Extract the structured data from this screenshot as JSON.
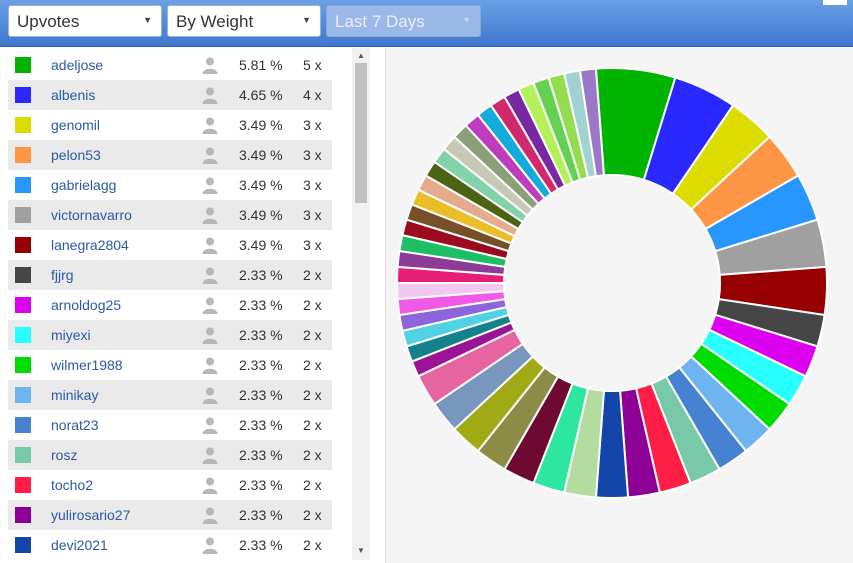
{
  "toolbar": {
    "metric": "Upvotes",
    "weighting": "By Weight",
    "period": "Last 7 Days"
  },
  "rows": [
    {
      "name": "adeljose",
      "pct": "5.81 %",
      "count": "5 x",
      "color": "#00b400"
    },
    {
      "name": "albenis",
      "pct": "4.65 %",
      "count": "4 x",
      "color": "#2828ff"
    },
    {
      "name": "genomil",
      "pct": "3.49 %",
      "count": "3 x",
      "color": "#dcdc00"
    },
    {
      "name": "pelon53",
      "pct": "3.49 %",
      "count": "3 x",
      "color": "#ff9646"
    },
    {
      "name": "gabrielagg",
      "pct": "3.49 %",
      "count": "3 x",
      "color": "#2896ff"
    },
    {
      "name": "victornavarro",
      "pct": "3.49 %",
      "count": "3 x",
      "color": "#a0a0a0"
    },
    {
      "name": "lanegra2804",
      "pct": "3.49 %",
      "count": "3 x",
      "color": "#960000"
    },
    {
      "name": "fjjrg",
      "pct": "2.33 %",
      "count": "2 x",
      "color": "#464646"
    },
    {
      "name": "arnoldog25",
      "pct": "2.33 %",
      "count": "2 x",
      "color": "#dc00f0"
    },
    {
      "name": "miyexi",
      "pct": "2.33 %",
      "count": "2 x",
      "color": "#28ffff"
    },
    {
      "name": "wilmer1988",
      "pct": "2.33 %",
      "count": "2 x",
      "color": "#00dc00"
    },
    {
      "name": "minikay",
      "pct": "2.33 %",
      "count": "2 x",
      "color": "#6eb4f0"
    },
    {
      "name": "norat23",
      "pct": "2.33 %",
      "count": "2 x",
      "color": "#4682d2"
    },
    {
      "name": "rosz",
      "pct": "2.33 %",
      "count": "2 x",
      "color": "#78c8aa"
    },
    {
      "name": "tocho2",
      "pct": "2.33 %",
      "count": "2 x",
      "color": "#ff1e46"
    },
    {
      "name": "yulirosario27",
      "pct": "2.33 %",
      "count": "2 x",
      "color": "#8c0096"
    },
    {
      "name": "devi2021",
      "pct": "2.33 %",
      "count": "2 x",
      "color": "#1446aa"
    }
  ],
  "chart_data": {
    "type": "pie",
    "style": "donut",
    "values": [
      5,
      4,
      3,
      3,
      3,
      3,
      3,
      2,
      2,
      2,
      2,
      2,
      2,
      2,
      2,
      2,
      2,
      2,
      2,
      2,
      2,
      2,
      2,
      2,
      1,
      1,
      1,
      1,
      1,
      1,
      1,
      1,
      1,
      1,
      1,
      1,
      1,
      1,
      1,
      1,
      1,
      1,
      1,
      1,
      1,
      1,
      1,
      1,
      1,
      1
    ],
    "colors": [
      "#00b400",
      "#2828ff",
      "#dcdc00",
      "#ff9646",
      "#2896ff",
      "#a0a0a0",
      "#960000",
      "#464646",
      "#dc00f0",
      "#28ffff",
      "#00dc00",
      "#6eb4f0",
      "#4682d2",
      "#78c8aa",
      "#ff1e46",
      "#8c0096",
      "#1446aa",
      "#b4dca0",
      "#2de6a0",
      "#6e0a32",
      "#8c8c46",
      "#a0aa14",
      "#7896be",
      "#e664a0",
      "#9b1496",
      "#14828c",
      "#50d2e6",
      "#8c64dc",
      "#f05ae6",
      "#f0c8f0",
      "#e61e78",
      "#8c3c96",
      "#1ebe64",
      "#9b0a1e",
      "#785028",
      "#ebbe28",
      "#e6aa8c",
      "#4b6414",
      "#82d2aa",
      "#c8c8b4",
      "#8ca078",
      "#be3cbe",
      "#14aadc",
      "#d2286e",
      "#7828a0",
      "#b4f05a",
      "#64d250",
      "#96dc50",
      "#a0d2d2",
      "#9b78c8"
    ]
  }
}
